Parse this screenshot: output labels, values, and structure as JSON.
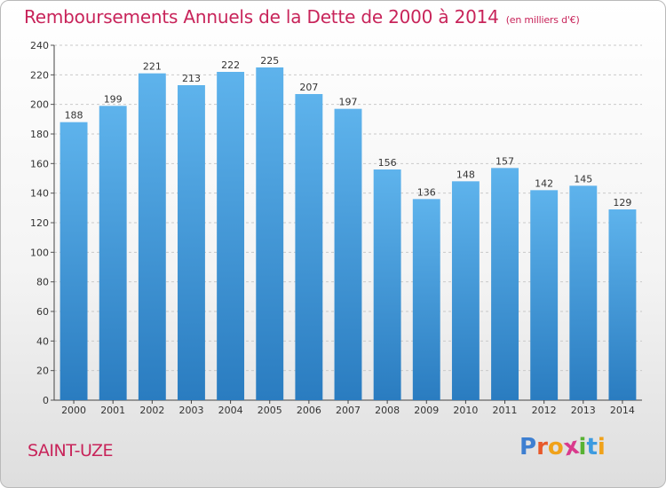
{
  "title": "Remboursements Annuels de la Dette de 2000 à 2014",
  "unit": "(en milliers d'€)",
  "commune": "SAINT-UZE",
  "logo": {
    "letters": [
      "P",
      "r",
      "o",
      "x",
      "i",
      "t",
      "i"
    ],
    "colors": [
      "#3d7fd1",
      "#e8592a",
      "#f0a21a",
      "#d93a8c",
      "#58b233",
      "#3d9be0",
      "#f0a21a"
    ]
  },
  "chart_data": {
    "type": "bar",
    "title": "Remboursements Annuels de la Dette de 2000 à 2014",
    "ylabel": "en milliers d'€",
    "xlabel": "",
    "categories": [
      "2000",
      "2001",
      "2002",
      "2003",
      "2004",
      "2005",
      "2006",
      "2007",
      "2008",
      "2009",
      "2010",
      "2011",
      "2012",
      "2013",
      "2014"
    ],
    "values": [
      188,
      199,
      221,
      213,
      222,
      225,
      207,
      197,
      156,
      136,
      148,
      157,
      142,
      145,
      129
    ],
    "ylim": [
      0,
      240
    ],
    "yticks": [
      0,
      20,
      40,
      60,
      80,
      100,
      120,
      140,
      160,
      180,
      200,
      220,
      240
    ],
    "grid": true
  }
}
